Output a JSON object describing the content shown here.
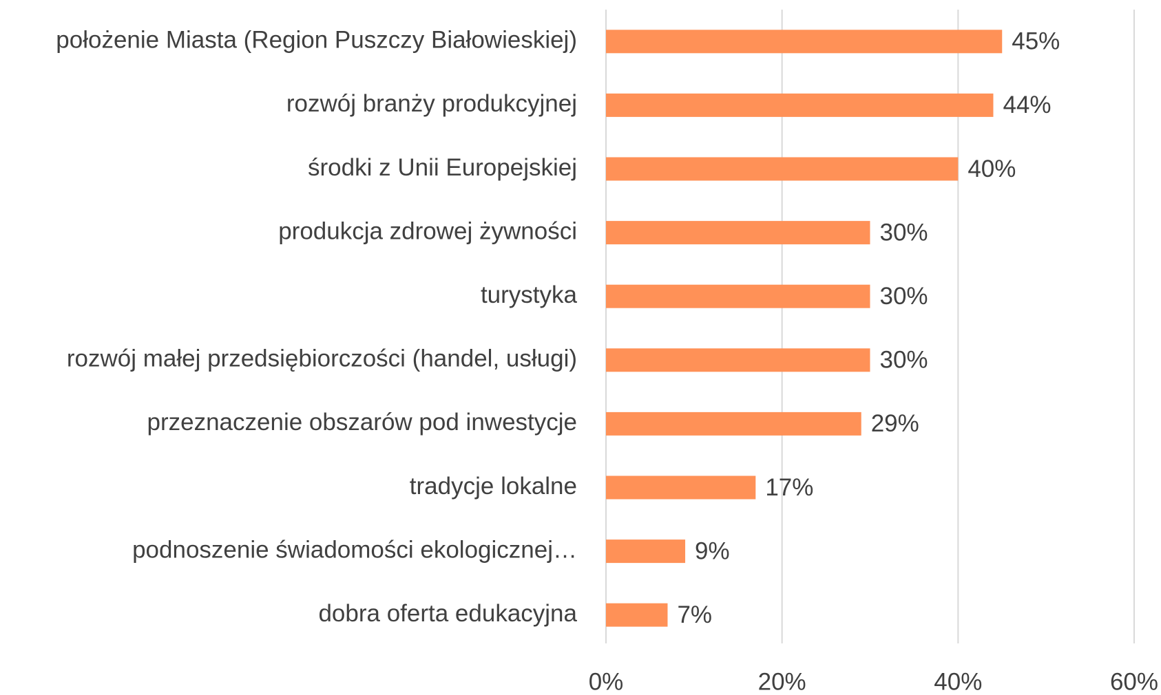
{
  "chart_data": {
    "type": "barh",
    "categories": [
      "położenie Miasta (Region Puszczy Białowieskiej)",
      "rozwój branży produkcyjnej",
      "środki z Unii Europejskiej",
      "produkcja zdrowej żywności",
      "turystyka",
      "rozwój małej przedsiębiorczości (handel, usługi)",
      "przeznaczenie obszarów pod inwestycje",
      "tradycje lokalne",
      "podnoszenie świadomości ekologicznej…",
      "dobra oferta edukacyjna"
    ],
    "values": [
      45,
      44,
      40,
      30,
      30,
      30,
      29,
      17,
      9,
      7
    ],
    "value_labels": [
      "45%",
      "44%",
      "40%",
      "30%",
      "30%",
      "30%",
      "29%",
      "17%",
      "9%",
      "7%"
    ],
    "color": "#ff9157",
    "xlim": [
      0,
      60
    ],
    "xticks": [
      {
        "value": 0,
        "label": "0%"
      },
      {
        "value": 20,
        "label": "20%"
      },
      {
        "value": 40,
        "label": "40%"
      },
      {
        "value": 60,
        "label": "60%"
      }
    ],
    "grid": true
  }
}
